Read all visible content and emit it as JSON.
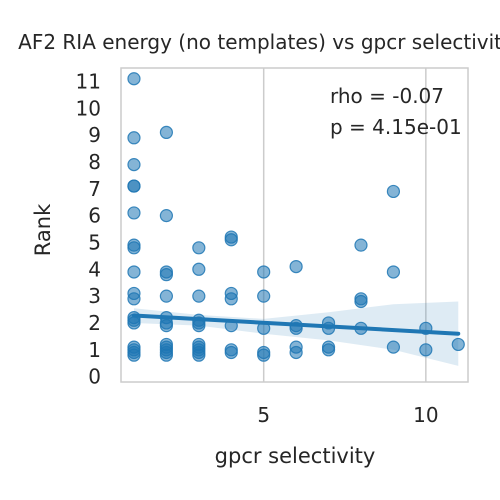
{
  "chart_data": {
    "type": "scatter",
    "title": "AF2 RIA energy (no templates) vs gpcr selectivity",
    "xlabel": "gpcr selectivity",
    "ylabel": "Rank",
    "xlim": [
      0.6,
      11.3
    ],
    "ylim": [
      -0.2,
      11.5
    ],
    "xticks": [
      5,
      10
    ],
    "yticks": [
      0,
      1,
      2,
      3,
      4,
      5,
      6,
      7,
      8,
      9,
      10,
      11
    ],
    "grid": true,
    "annotations": [
      "rho = -0.07",
      "p = 4.15e-01"
    ],
    "colors": {
      "points": "#1f77b4",
      "regression_line": "#1f77b4",
      "confidence_band": "#1f77b4",
      "grid": "#cccccc"
    },
    "points": [
      {
        "x": 1,
        "y": 11.1
      },
      {
        "x": 1,
        "y": 8.9
      },
      {
        "x": 1,
        "y": 7.9
      },
      {
        "x": 1,
        "y": 7.1
      },
      {
        "x": 1,
        "y": 7.1
      },
      {
        "x": 1,
        "y": 6.1
      },
      {
        "x": 1,
        "y": 4.9
      },
      {
        "x": 1,
        "y": 4.8
      },
      {
        "x": 1,
        "y": 3.9
      },
      {
        "x": 1,
        "y": 3.1
      },
      {
        "x": 1,
        "y": 2.9
      },
      {
        "x": 1,
        "y": 2.2
      },
      {
        "x": 1,
        "y": 2.1
      },
      {
        "x": 1,
        "y": 2.0
      },
      {
        "x": 1,
        "y": 1.1
      },
      {
        "x": 1,
        "y": 1.0
      },
      {
        "x": 1,
        "y": 0.9
      },
      {
        "x": 1,
        "y": 0.8
      },
      {
        "x": 2,
        "y": 9.1
      },
      {
        "x": 2,
        "y": 6.0
      },
      {
        "x": 2,
        "y": 3.9
      },
      {
        "x": 2,
        "y": 3.8
      },
      {
        "x": 2,
        "y": 3.0
      },
      {
        "x": 2,
        "y": 2.2
      },
      {
        "x": 2,
        "y": 2.0
      },
      {
        "x": 2,
        "y": 1.9
      },
      {
        "x": 2,
        "y": 1.2
      },
      {
        "x": 2,
        "y": 1.1
      },
      {
        "x": 2,
        "y": 1.0
      },
      {
        "x": 2,
        "y": 0.9
      },
      {
        "x": 2,
        "y": 0.8
      },
      {
        "x": 3,
        "y": 4.8
      },
      {
        "x": 3,
        "y": 4.0
      },
      {
        "x": 3,
        "y": 3.0
      },
      {
        "x": 3,
        "y": 2.1
      },
      {
        "x": 3,
        "y": 2.0
      },
      {
        "x": 3,
        "y": 1.9
      },
      {
        "x": 3,
        "y": 1.2
      },
      {
        "x": 3,
        "y": 1.1
      },
      {
        "x": 3,
        "y": 1.0
      },
      {
        "x": 3,
        "y": 0.9
      },
      {
        "x": 3,
        "y": 0.8
      },
      {
        "x": 4,
        "y": 5.2
      },
      {
        "x": 4,
        "y": 5.1
      },
      {
        "x": 4,
        "y": 3.1
      },
      {
        "x": 4,
        "y": 2.9
      },
      {
        "x": 4,
        "y": 1.9
      },
      {
        "x": 4,
        "y": 1.0
      },
      {
        "x": 4,
        "y": 0.9
      },
      {
        "x": 5,
        "y": 3.9
      },
      {
        "x": 5,
        "y": 3.0
      },
      {
        "x": 5,
        "y": 1.8
      },
      {
        "x": 5,
        "y": 0.9
      },
      {
        "x": 5,
        "y": 0.8
      },
      {
        "x": 6,
        "y": 4.1
      },
      {
        "x": 6,
        "y": 1.9
      },
      {
        "x": 6,
        "y": 1.8
      },
      {
        "x": 6,
        "y": 1.1
      },
      {
        "x": 6,
        "y": 0.9
      },
      {
        "x": 7,
        "y": 2.0
      },
      {
        "x": 7,
        "y": 1.8
      },
      {
        "x": 7,
        "y": 1.1
      },
      {
        "x": 7,
        "y": 1.0
      },
      {
        "x": 8,
        "y": 4.9
      },
      {
        "x": 8,
        "y": 2.9
      },
      {
        "x": 8,
        "y": 2.8
      },
      {
        "x": 8,
        "y": 1.8
      },
      {
        "x": 9,
        "y": 6.9
      },
      {
        "x": 9,
        "y": 3.9
      },
      {
        "x": 9,
        "y": 1.1
      },
      {
        "x": 10,
        "y": 1.8
      },
      {
        "x": 10,
        "y": 1.0
      },
      {
        "x": 11,
        "y": 1.2
      }
    ],
    "regression": {
      "x": [
        1,
        11
      ],
      "y": [
        2.28,
        1.6
      ]
    },
    "confidence_band": {
      "x": [
        1,
        3,
        5,
        7,
        9,
        11
      ],
      "lower": [
        2.0,
        1.9,
        1.6,
        1.35,
        1.0,
        0.4
      ],
      "upper": [
        2.55,
        2.3,
        2.15,
        2.4,
        2.7,
        2.8
      ]
    }
  }
}
